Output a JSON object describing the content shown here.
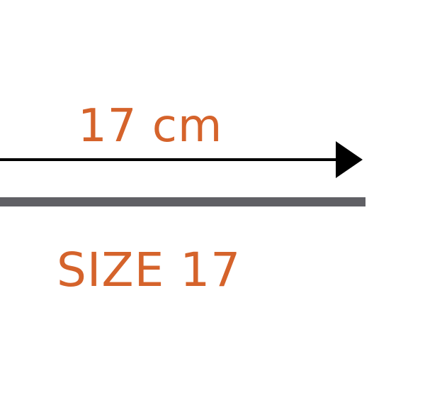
{
  "measurement": {
    "label": "17 cm"
  },
  "size": {
    "label": "SIZE 17"
  },
  "colors": {
    "accent": "#d5632b",
    "arrow": "#000000",
    "bar": "#606065",
    "background": "#ffffff"
  }
}
